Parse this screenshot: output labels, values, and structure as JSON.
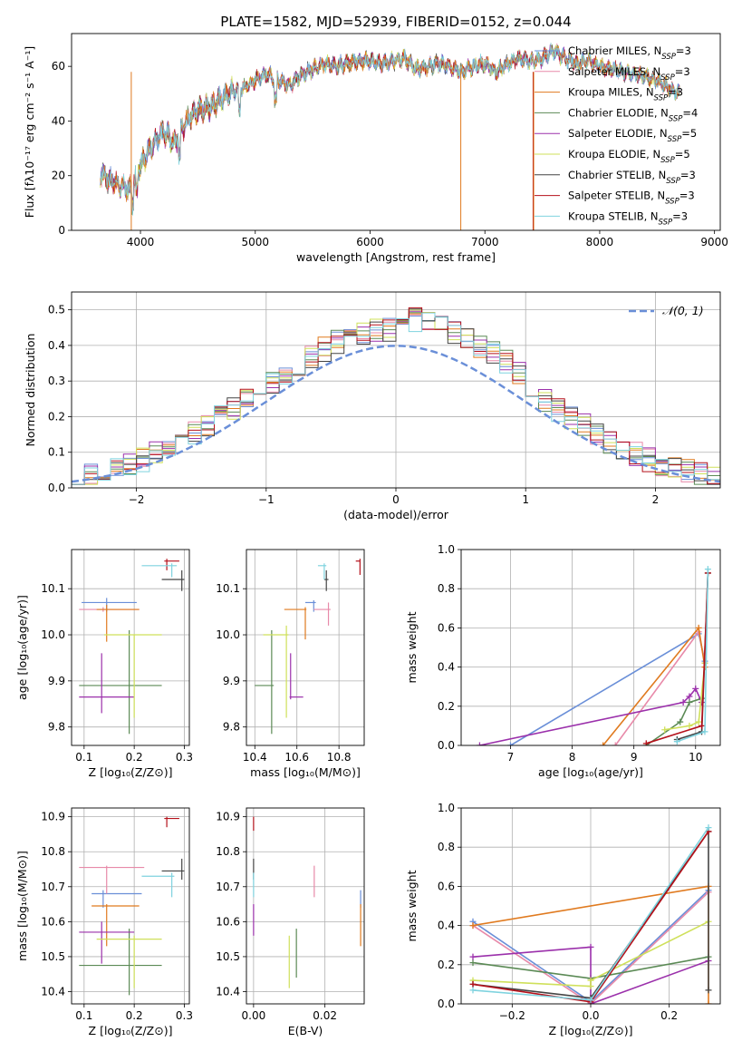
{
  "title": "PLATE=1582, MJD=52939, FIBERID=0152, z=0.044",
  "colors": {
    "chabrier_miles": "#6a8fd8",
    "salpeter_miles": "#e88aa9",
    "kroupa_miles": "#e07a1f",
    "chabrier_elodie": "#5b8a55",
    "salpeter_elodie": "#9b30ab",
    "kroupa_elodie": "#cfe05a",
    "chabrier_stelib": "#444444",
    "salpeter_stelib": "#b5111b",
    "kroupa_stelib": "#7fd3df",
    "normal": "#6a8fd8"
  },
  "chart_data": [
    {
      "id": "spectrum",
      "type": "line",
      "xlabel": "wavelength [Angstrom, rest frame]",
      "ylabel": "Flux [fλ10⁻¹⁷ erg cm⁻² s⁻¹ A⁻¹]",
      "xlim": [
        3400,
        9050
      ],
      "ylim": [
        0,
        72
      ],
      "xticks": [
        4000,
        5000,
        6000,
        7000,
        8000,
        9000
      ],
      "yticks": [
        0,
        20,
        40,
        60
      ],
      "grid": false,
      "legend_position": "right",
      "x": [
        3650,
        3700,
        3800,
        3900,
        3950,
        4000,
        4100,
        4200,
        4300,
        4400,
        4500,
        4600,
        4700,
        4800,
        4900,
        5000,
        5100,
        5200,
        5300,
        5400,
        5500,
        5600,
        5700,
        5800,
        5900,
        6000,
        6100,
        6200,
        6300,
        6400,
        6500,
        6600,
        6700,
        6800,
        6900,
        7000,
        7100,
        7200,
        7300,
        7400,
        7500,
        7600,
        7700,
        7800,
        7900,
        8000,
        8100,
        8200,
        8300,
        8400,
        8500,
        8600,
        8700
      ],
      "y": [
        21,
        19,
        17,
        15,
        18,
        24,
        31,
        36,
        32,
        40,
        44,
        45,
        48,
        51,
        52,
        55,
        57,
        55,
        53,
        57,
        59,
        61,
        60,
        61,
        62,
        62,
        61,
        62,
        63,
        59,
        60,
        61,
        60,
        58,
        60,
        61,
        58,
        61,
        63,
        62,
        63,
        66,
        63,
        61,
        62,
        60,
        59,
        58,
        57,
        56,
        55,
        52,
        50
      ],
      "dropouts": [
        {
          "name": "Kroupa MILES",
          "x": 3920
        },
        {
          "name": "Kroupa MILES",
          "x": 6790
        },
        {
          "name": "Salpeter STELIB",
          "x": 7420
        },
        {
          "name": "Kroupa MILES",
          "x": 7425
        }
      ],
      "series": [
        {
          "name": "Chabrier MILES",
          "nssp": "3"
        },
        {
          "name": "Salpeter MILES",
          "nssp": "3"
        },
        {
          "name": "Kroupa MILES",
          "nssp": "3"
        },
        {
          "name": "Chabrier ELODIE",
          "nssp": "4"
        },
        {
          "name": "Salpeter ELODIE",
          "nssp": "5"
        },
        {
          "name": "Kroupa ELODIE",
          "nssp": "5"
        },
        {
          "name": "Chabrier STELIB",
          "nssp": "3"
        },
        {
          "name": "Salpeter STELIB",
          "nssp": "3"
        },
        {
          "name": "Kroupa STELIB",
          "nssp": "3"
        }
      ],
      "legend_labels": [
        "Chabrier MILES, N",
        "Salpeter MILES, N",
        "Kroupa MILES, N",
        "Chabrier ELODIE, N",
        "Salpeter ELODIE, N",
        "Kroupa ELODIE, N",
        "Chabrier STELIB, N",
        "Salpeter STELIB, N",
        "Kroupa STELIB, N"
      ],
      "legend_sub": "SSP"
    },
    {
      "id": "residuals",
      "type": "histogram",
      "xlabel": "(data-model)/error",
      "ylabel": "Normed distribution",
      "xlim": [
        -2.5,
        2.5
      ],
      "ylim": [
        0,
        0.55
      ],
      "xticks": [
        -2,
        -1,
        0,
        1,
        2
      ],
      "yticks": [
        0.0,
        0.1,
        0.2,
        0.3,
        0.4,
        0.5
      ],
      "grid": true,
      "legend_position": "top-right",
      "legend_label": "𝒩(0, 1)",
      "bin_width": 0.1
    },
    {
      "id": "age_vs_z",
      "type": "scatter",
      "xlabel": "Z [log₁₀(Z/Z⊙)]",
      "ylabel": "age  [log₁₀(age/yr)]",
      "xlim": [
        0.075,
        0.31
      ],
      "ylim": [
        9.76,
        10.185
      ],
      "xticks": [
        0.1,
        0.2,
        0.3
      ],
      "yticks": [
        9.8,
        9.9,
        10.0,
        10.1
      ],
      "grid": true,
      "points": [
        {
          "series": "Chabrier MILES",
          "x": 0.145,
          "y": 10.07,
          "xerr": [
            0.095,
            0.205
          ],
          "yerr": [
            10.05,
            10.08
          ]
        },
        {
          "series": "Salpeter MILES",
          "x": 0.138,
          "y": 10.055,
          "xerr": [
            0.09,
            0.21
          ],
          "yerr": [
            10.05,
            10.06
          ]
        },
        {
          "series": "Kroupa MILES",
          "x": 0.145,
          "y": 10.055,
          "xerr": [
            0.125,
            0.21
          ],
          "yerr": [
            9.985,
            10.065
          ]
        },
        {
          "series": "Chabrier ELODIE",
          "x": 0.19,
          "y": 9.89,
          "xerr": [
            0.09,
            0.255
          ],
          "yerr": [
            9.785,
            10.01
          ]
        },
        {
          "series": "Salpeter ELODIE",
          "x": 0.135,
          "y": 9.865,
          "xerr": [
            0.09,
            0.2
          ],
          "yerr": [
            9.83,
            9.96
          ]
        },
        {
          "series": "Kroupa ELODIE",
          "x": 0.2,
          "y": 10.0,
          "xerr": [
            0.14,
            0.255
          ],
          "yerr": [
            9.82,
            10.0
          ]
        },
        {
          "series": "Chabrier STELIB",
          "x": 0.295,
          "y": 10.12,
          "xerr": [
            0.255,
            0.3
          ],
          "yerr": [
            10.095,
            10.14
          ]
        },
        {
          "series": "Salpeter STELIB",
          "x": 0.265,
          "y": 10.16,
          "xerr": [
            0.26,
            0.29
          ],
          "yerr": [
            10.14,
            10.165
          ]
        },
        {
          "series": "Kroupa STELIB",
          "x": 0.275,
          "y": 10.15,
          "xerr": [
            0.215,
            0.285
          ],
          "yerr": [
            10.125,
            10.155
          ]
        }
      ]
    },
    {
      "id": "age_vs_mass",
      "type": "scatter",
      "xlabel": "mass [log₁₀(M/M⊙)]",
      "ylabel": "",
      "xlim": [
        10.36,
        10.92
      ],
      "ylim": [
        9.76,
        10.185
      ],
      "xticks": [
        10.4,
        10.6,
        10.8
      ],
      "yticks": [
        9.8,
        9.9,
        10.0,
        10.1
      ],
      "grid": true,
      "points": [
        {
          "series": "Chabrier MILES",
          "x": 10.68,
          "y": 10.07,
          "xerr": [
            10.64,
            10.69
          ],
          "yerr": [
            10.05,
            10.075
          ]
        },
        {
          "series": "Salpeter MILES",
          "x": 10.75,
          "y": 10.055,
          "xerr": [
            10.68,
            10.76
          ],
          "yerr": [
            10.02,
            10.07
          ]
        },
        {
          "series": "Kroupa MILES",
          "x": 10.64,
          "y": 10.055,
          "xerr": [
            10.54,
            10.645
          ],
          "yerr": [
            9.99,
            10.06
          ]
        },
        {
          "series": "Chabrier ELODIE",
          "x": 10.48,
          "y": 9.89,
          "xerr": [
            10.4,
            10.49
          ],
          "yerr": [
            9.785,
            10.01
          ]
        },
        {
          "series": "Salpeter ELODIE",
          "x": 10.57,
          "y": 9.865,
          "xerr": [
            10.565,
            10.63
          ],
          "yerr": [
            9.86,
            9.96
          ]
        },
        {
          "series": "Kroupa ELODIE",
          "x": 10.55,
          "y": 10.0,
          "xerr": [
            10.44,
            10.56
          ],
          "yerr": [
            9.82,
            10.02
          ]
        },
        {
          "series": "Chabrier STELIB",
          "x": 10.74,
          "y": 10.12,
          "xerr": [
            10.73,
            10.75
          ],
          "yerr": [
            10.095,
            10.14
          ]
        },
        {
          "series": "Salpeter STELIB",
          "x": 10.9,
          "y": 10.16,
          "xerr": [
            10.88,
            10.9
          ],
          "yerr": [
            10.13,
            10.165
          ]
        },
        {
          "series": "Kroupa STELIB",
          "x": 10.73,
          "y": 10.15,
          "xerr": [
            10.7,
            10.74
          ],
          "yerr": [
            10.12,
            10.155
          ]
        }
      ]
    },
    {
      "id": "weight_vs_age",
      "type": "line",
      "xlabel": "age  [log₁₀(age/yr)]",
      "ylabel": "mass weight",
      "xlim": [
        6.2,
        10.4
      ],
      "ylim": [
        0,
        1.0
      ],
      "xticks": [
        7,
        8,
        9,
        10
      ],
      "yticks": [
        0.0,
        0.2,
        0.4,
        0.6,
        0.8,
        1.0
      ],
      "grid": true,
      "series": [
        {
          "name": "Chabrier MILES",
          "x": [
            7.0,
            10.05,
            10.15
          ],
          "y": [
            0.0,
            0.57,
            0.43
          ]
        },
        {
          "name": "Salpeter MILES",
          "x": [
            8.7,
            10.05,
            10.15
          ],
          "y": [
            0.0,
            0.58,
            0.42
          ]
        },
        {
          "name": "Kroupa MILES",
          "x": [
            8.5,
            10.05,
            10.15
          ],
          "y": [
            0.0,
            0.6,
            0.4
          ]
        },
        {
          "name": "Chabrier ELODIE",
          "x": [
            9.2,
            9.75,
            9.9,
            10.1
          ],
          "y": [
            0.0,
            0.12,
            0.22,
            0.24
          ]
        },
        {
          "name": "Salpeter ELODIE",
          "x": [
            6.5,
            9.8,
            9.9,
            10.0,
            10.1
          ],
          "y": [
            0.0,
            0.22,
            0.25,
            0.29,
            0.22
          ]
        },
        {
          "name": "Kroupa ELODIE",
          "x": [
            9.5,
            9.9,
            10.05,
            10.15
          ],
          "y": [
            0.08,
            0.1,
            0.12,
            0.42
          ]
        },
        {
          "name": "Chabrier STELIB",
          "x": [
            9.7,
            10.1,
            10.2
          ],
          "y": [
            0.03,
            0.07,
            0.88
          ]
        },
        {
          "name": "Salpeter STELIB",
          "x": [
            9.2,
            10.1,
            10.2
          ],
          "y": [
            0.01,
            0.1,
            0.88
          ]
        },
        {
          "name": "Kroupa STELIB",
          "x": [
            9.7,
            10.15,
            10.2
          ],
          "y": [
            0.02,
            0.07,
            0.9
          ]
        }
      ]
    },
    {
      "id": "mass_vs_z",
      "type": "scatter",
      "xlabel": "Z [log₁₀(Z/Z⊙)]",
      "ylabel": "mass [log₁₀(M/M⊙)]",
      "xlim": [
        0.075,
        0.31
      ],
      "ylim": [
        10.365,
        10.925
      ],
      "xticks": [
        0.1,
        0.2,
        0.3
      ],
      "yticks": [
        10.4,
        10.5,
        10.6,
        10.7,
        10.8,
        10.9
      ],
      "grid": true,
      "points": [
        {
          "series": "Chabrier MILES",
          "x": 0.138,
          "y": 10.68,
          "xerr": [
            0.115,
            0.215
          ],
          "yerr": [
            10.64,
            10.69
          ]
        },
        {
          "series": "Salpeter MILES",
          "x": 0.145,
          "y": 10.755,
          "xerr": [
            0.09,
            0.22
          ],
          "yerr": [
            10.68,
            10.76
          ]
        },
        {
          "series": "Kroupa MILES",
          "x": 0.145,
          "y": 10.645,
          "xerr": [
            0.115,
            0.21
          ],
          "yerr": [
            10.53,
            10.65
          ]
        },
        {
          "series": "Chabrier ELODIE",
          "x": 0.19,
          "y": 10.475,
          "xerr": [
            0.09,
            0.255
          ],
          "yerr": [
            10.39,
            10.58
          ]
        },
        {
          "series": "Salpeter ELODIE",
          "x": 0.135,
          "y": 10.57,
          "xerr": [
            0.09,
            0.2
          ],
          "yerr": [
            10.48,
            10.6
          ]
        },
        {
          "series": "Kroupa ELODIE",
          "x": 0.2,
          "y": 10.55,
          "xerr": [
            0.125,
            0.255
          ],
          "yerr": [
            10.41,
            10.56
          ]
        },
        {
          "series": "Chabrier STELIB",
          "x": 0.295,
          "y": 10.745,
          "xerr": [
            0.255,
            0.3
          ],
          "yerr": [
            10.72,
            10.78
          ]
        },
        {
          "series": "Salpeter STELIB",
          "x": 0.265,
          "y": 10.895,
          "xerr": [
            0.26,
            0.29
          ],
          "yerr": [
            10.87,
            10.9
          ]
        },
        {
          "series": "Kroupa STELIB",
          "x": 0.275,
          "y": 10.73,
          "xerr": [
            0.215,
            0.28
          ],
          "yerr": [
            10.67,
            10.74
          ]
        }
      ]
    },
    {
      "id": "mass_vs_ebv",
      "type": "scatter",
      "xlabel": "E(B-V)",
      "ylabel": "",
      "xlim": [
        -0.002,
        0.031
      ],
      "ylim": [
        10.365,
        10.925
      ],
      "xticks": [
        0.0,
        0.02
      ],
      "yticks": [
        10.4,
        10.5,
        10.6,
        10.7,
        10.8,
        10.9
      ],
      "grid": true,
      "points": [
        {
          "series": "Chabrier MILES",
          "x": 0.03,
          "y": 10.68,
          "yerr": [
            10.64,
            10.69
          ]
        },
        {
          "series": "Salpeter MILES",
          "x": 0.017,
          "y": 10.755,
          "yerr": [
            10.67,
            10.76
          ]
        },
        {
          "series": "Kroupa MILES",
          "x": 0.03,
          "y": 10.645,
          "yerr": [
            10.53,
            10.65
          ]
        },
        {
          "series": "Chabrier ELODIE",
          "x": 0.012,
          "y": 10.475,
          "yerr": [
            10.44,
            10.58
          ]
        },
        {
          "series": "Salpeter ELODIE",
          "x": 0.0,
          "y": 10.57,
          "yerr": [
            10.56,
            10.65
          ]
        },
        {
          "series": "Kroupa ELODIE",
          "x": 0.01,
          "y": 10.55,
          "yerr": [
            10.41,
            10.56
          ]
        },
        {
          "series": "Chabrier STELIB",
          "x": 0.0,
          "y": 10.745,
          "yerr": [
            10.72,
            10.78
          ]
        },
        {
          "series": "Salpeter STELIB",
          "x": 0.0,
          "y": 10.895,
          "yerr": [
            10.86,
            10.9
          ]
        },
        {
          "series": "Kroupa STELIB",
          "x": 0.0,
          "y": 10.73,
          "yerr": [
            10.67,
            10.74
          ]
        }
      ]
    },
    {
      "id": "weight_vs_z",
      "type": "line",
      "xlabel": "Z [log₁₀(Z/Z⊙)]",
      "ylabel": "mass weight",
      "xlim": [
        -0.33,
        0.33
      ],
      "ylim": [
        0,
        1.0
      ],
      "xticks": [
        -0.2,
        0.0,
        0.2
      ],
      "yticks": [
        0.0,
        0.2,
        0.4,
        0.6,
        0.8,
        1.0
      ],
      "grid": true,
      "series": [
        {
          "name": "Chabrier MILES",
          "x": [
            -0.3,
            0.0,
            0.3
          ],
          "y": [
            0.42,
            0.01,
            0.58
          ]
        },
        {
          "name": "Salpeter MILES",
          "x": [
            -0.3,
            0.0,
            0.3
          ],
          "y": [
            0.4,
            0.0,
            0.57
          ]
        },
        {
          "name": "Kroupa MILES",
          "x": [
            -0.3,
            0.3,
            0.3
          ],
          "y": [
            0.4,
            0.6,
            0.0
          ]
        },
        {
          "name": "Chabrier ELODIE",
          "x": [
            -0.3,
            0.0,
            0.3
          ],
          "y": [
            0.21,
            0.13,
            0.24
          ]
        },
        {
          "name": "Salpeter ELODIE",
          "x": [
            -0.3,
            0.0,
            0.0,
            0.0,
            0.3
          ],
          "y": [
            0.24,
            0.29,
            0.0,
            0.0,
            0.22
          ]
        },
        {
          "name": "Kroupa ELODIE",
          "x": [
            -0.3,
            0.0,
            0.0,
            0.3
          ],
          "y": [
            0.12,
            0.09,
            0.12,
            0.42
          ]
        },
        {
          "name": "Chabrier STELIB",
          "x": [
            -0.3,
            0.0,
            0.3,
            0.3
          ],
          "y": [
            0.1,
            0.03,
            0.88,
            0.07
          ]
        },
        {
          "name": "Salpeter STELIB",
          "x": [
            -0.3,
            0.0,
            0.3
          ],
          "y": [
            0.1,
            0.01,
            0.88
          ]
        },
        {
          "name": "Kroupa STELIB",
          "x": [
            -0.3,
            0.0,
            0.3
          ],
          "y": [
            0.07,
            0.02,
            0.9
          ]
        }
      ]
    }
  ]
}
